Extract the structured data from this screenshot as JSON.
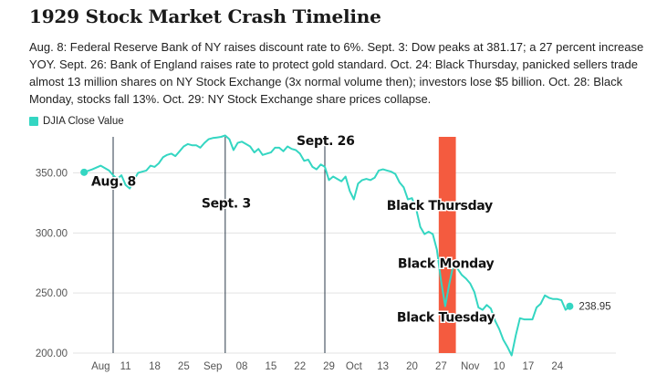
{
  "title": "1929 Stock Market Crash Timeline",
  "description": "Aug. 8: Federal Reserve Bank of NY raises discount rate to 6%. Sept. 3: Dow peaks at 381.17; a 27 percent increase YOY. Sept. 26: Bank of England raises rate to protect gold standard. Oct. 24: Black Thursday, panicked sellers trade almost 13 million shares on NY Stock Exchange (3x normal volume then); investors lose $5 billion. Oct. 28: Black Monday, stocks fall 13%. Oct. 29: NY Stock Exchange share prices collapse.",
  "colors": {
    "line": "#34d6c2",
    "highlight": "#f45b3f",
    "event_line": "#2b3a4a",
    "grid": "#e3e3e3"
  },
  "chart_data": {
    "type": "line",
    "series_name": "DJIA Close Value",
    "x_start_day": 1,
    "x_end_day": 90,
    "ylim": [
      200,
      380
    ],
    "yticks": [
      200,
      250,
      300,
      350
    ],
    "ytick_labels": [
      "200.00",
      "250.00",
      "300.00",
      "350.00"
    ],
    "xticks": [
      {
        "day": 5,
        "label": "Aug"
      },
      {
        "day": 11,
        "label": "11"
      },
      {
        "day": 18,
        "label": "18"
      },
      {
        "day": 25,
        "label": "25"
      },
      {
        "day": 32,
        "label": "Sep"
      },
      {
        "day": 39,
        "label": "08"
      },
      {
        "day": 46,
        "label": "15"
      },
      {
        "day": 53,
        "label": "22"
      },
      {
        "day": 60,
        "label": "29"
      },
      {
        "day": 66,
        "label": "Oct"
      },
      {
        "day": 73,
        "label": "13"
      },
      {
        "day": 80,
        "label": "20"
      },
      {
        "day": 87,
        "label": "27"
      },
      {
        "day": 94,
        "label": "Nov"
      },
      {
        "day": 101,
        "label": "10"
      },
      {
        "day": 108,
        "label": "17"
      },
      {
        "day": 115,
        "label": "24"
      }
    ],
    "points": [
      [
        1,
        350.5
      ],
      [
        3,
        353
      ],
      [
        5,
        356
      ],
      [
        7,
        352
      ],
      [
        8,
        348
      ],
      [
        9,
        345
      ],
      [
        10,
        348
      ],
      [
        11,
        340
      ],
      [
        12,
        337
      ],
      [
        13,
        344
      ],
      [
        14,
        350
      ],
      [
        15,
        351
      ],
      [
        16,
        352
      ],
      [
        17,
        356
      ],
      [
        18,
        355
      ],
      [
        19,
        358
      ],
      [
        20,
        363
      ],
      [
        21,
        365
      ],
      [
        22,
        366
      ],
      [
        23,
        364
      ],
      [
        24,
        368
      ],
      [
        25,
        372
      ],
      [
        26,
        374
      ],
      [
        27,
        373
      ],
      [
        28,
        373
      ],
      [
        29,
        371
      ],
      [
        30,
        375
      ],
      [
        31,
        378
      ],
      [
        32,
        379
      ],
      [
        33,
        379.5
      ],
      [
        34,
        380
      ],
      [
        35,
        381.17
      ],
      [
        36,
        378
      ],
      [
        37,
        369
      ],
      [
        38,
        375
      ],
      [
        39,
        376
      ],
      [
        40,
        374
      ],
      [
        41,
        372
      ],
      [
        42,
        367
      ],
      [
        43,
        370
      ],
      [
        44,
        365
      ],
      [
        45,
        366
      ],
      [
        46,
        367
      ],
      [
        47,
        371
      ],
      [
        48,
        371
      ],
      [
        49,
        368
      ],
      [
        50,
        372
      ],
      [
        51,
        370
      ],
      [
        52,
        369
      ],
      [
        53,
        366
      ],
      [
        54,
        360
      ],
      [
        55,
        361
      ],
      [
        56,
        355
      ],
      [
        57,
        353
      ],
      [
        58,
        357
      ],
      [
        59,
        355
      ],
      [
        60,
        344
      ],
      [
        61,
        347
      ],
      [
        62,
        345
      ],
      [
        63,
        343
      ],
      [
        64,
        347
      ],
      [
        65,
        335
      ],
      [
        66,
        328
      ],
      [
        67,
        341
      ],
      [
        68,
        344
      ],
      [
        69,
        345
      ],
      [
        70,
        344
      ],
      [
        71,
        346
      ],
      [
        72,
        352
      ],
      [
        73,
        353
      ],
      [
        74,
        352
      ],
      [
        75,
        351
      ],
      [
        76,
        349
      ],
      [
        77,
        342
      ],
      [
        78,
        338
      ],
      [
        79,
        328
      ],
      [
        80,
        329
      ],
      [
        81,
        320
      ],
      [
        82,
        305
      ],
      [
        83,
        299
      ],
      [
        84,
        301
      ],
      [
        85,
        299
      ],
      [
        86,
        286
      ],
      [
        87,
        260
      ],
      [
        88,
        239
      ],
      [
        89,
        258
      ],
      [
        90,
        274
      ],
      [
        91,
        270
      ],
      [
        92,
        265
      ],
      [
        93,
        262
      ],
      [
        94,
        258
      ],
      [
        95,
        251
      ],
      [
        96,
        238
      ],
      [
        97,
        236
      ],
      [
        98,
        240
      ],
      [
        99,
        237
      ],
      [
        100,
        227
      ],
      [
        101,
        220
      ],
      [
        102,
        211
      ],
      [
        103,
        205
      ],
      [
        104,
        198
      ],
      [
        105,
        215
      ],
      [
        106,
        229
      ],
      [
        107,
        228
      ],
      [
        108,
        228
      ],
      [
        109,
        228
      ],
      [
        110,
        238
      ],
      [
        111,
        241
      ],
      [
        112,
        248
      ],
      [
        113,
        246
      ],
      [
        114,
        245
      ],
      [
        115,
        245
      ],
      [
        116,
        244
      ],
      [
        117,
        236
      ],
      [
        118,
        238.95
      ]
    ],
    "x_end": 118,
    "last_value_label": "238.95",
    "events": [
      {
        "day": 8,
        "label": "Aug. 8",
        "label_value": 343,
        "line": true
      },
      {
        "day": 35,
        "label": "Sept. 3",
        "label_value": 325,
        "line": true
      },
      {
        "day": 59,
        "label": "Sept. 26",
        "label_value": 377,
        "line": true
      }
    ],
    "highlight": {
      "start_day": 86,
      "end_day": 91
    },
    "highlight_labels": [
      {
        "label": "Black Thursday",
        "day": 86,
        "value": 323
      },
      {
        "label": "Black Monday",
        "day": 87.5,
        "value": 275
      },
      {
        "label": "Black Tuesday",
        "day": 87.5,
        "value": 230
      }
    ]
  }
}
